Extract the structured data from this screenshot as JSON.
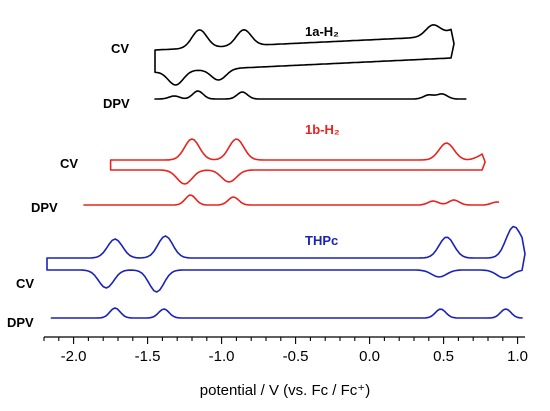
{
  "chart_data": {
    "type": "line",
    "title": "",
    "xlabel": "potential / V (vs. Fc / Fc⁺)",
    "ylabel": "",
    "xlim": [
      -2.2,
      1.05
    ],
    "xticks": [
      -2.0,
      -1.5,
      -1.0,
      -0.5,
      0.0,
      0.5,
      1.0
    ],
    "xtick_labels": [
      "-2.0",
      "-1.5",
      "-1.0",
      "-0.5",
      "0.0",
      "0.5",
      "1.0"
    ],
    "grid": false,
    "series_colors": {
      "1a-H2": "#000000",
      "1b-H2": "#e8231f",
      "THPc": "#1b22b8"
    },
    "series": [
      {
        "name": "1a-H₂",
        "color": "#000000",
        "cv": {
          "label": "CV",
          "range": [
            -1.45,
            0.55
          ],
          "forward_peaks": [
            [
              -1.15,
              18
            ],
            [
              -0.85,
              16
            ],
            [
              0.43,
              12
            ]
          ],
          "reverse_peaks": [
            [
              -1.31,
              14
            ],
            [
              -1.02,
              11
            ]
          ]
        },
        "dpv": {
          "label": "DPV",
          "range": [
            -1.45,
            0.65
          ],
          "peaks": [
            [
              -1.32,
              3
            ],
            [
              -1.16,
              8
            ],
            [
              -0.86,
              7
            ],
            [
              0.4,
              4
            ],
            [
              0.49,
              5
            ]
          ]
        }
      },
      {
        "name": "1b-H₂",
        "color": "#e8231f",
        "cv": {
          "label": "CV",
          "range": [
            -1.75,
            0.76
          ],
          "forward_peaks": [
            [
              -1.2,
              21
            ],
            [
              -0.9,
              21
            ],
            [
              0.52,
              17
            ]
          ],
          "reverse_peaks": [
            [
              -1.25,
              14
            ],
            [
              -0.95,
              12
            ]
          ]
        },
        "dpv": {
          "label": "DPV",
          "range": [
            -1.93,
            0.87
          ],
          "peaks": [
            [
              -1.21,
              10
            ],
            [
              -0.92,
              8
            ],
            [
              0.43,
              4
            ],
            [
              0.57,
              5
            ],
            [
              0.86,
              3
            ]
          ]
        }
      },
      {
        "name": "THPc",
        "color": "#1b22b8",
        "cv": {
          "label": "CV",
          "range": [
            -2.18,
            1.03
          ],
          "forward_peaks": [
            [
              -1.72,
              19
            ],
            [
              -1.38,
              22
            ],
            [
              0.52,
              21
            ],
            [
              0.97,
              30
            ]
          ],
          "reverse_peaks": [
            [
              -1.78,
              18
            ],
            [
              -1.44,
              22
            ],
            [
              0.47,
              7
            ],
            [
              0.91,
              8
            ]
          ]
        },
        "dpv": {
          "label": "DPV",
          "range": [
            -2.15,
            1.03
          ],
          "peaks": [
            [
              -1.72,
              10
            ],
            [
              -1.39,
              9
            ],
            [
              0.48,
              9
            ],
            [
              0.92,
              9
            ]
          ]
        }
      }
    ]
  }
}
